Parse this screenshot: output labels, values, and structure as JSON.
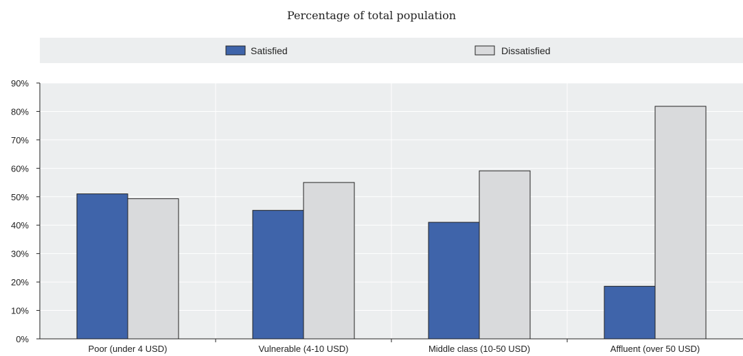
{
  "colors": {
    "satisfied": "#3f64aa",
    "dissatisfied": "#d9dadc",
    "legend_bg": "#eceeef",
    "grid": "#ffffff",
    "axis": "#222222"
  },
  "chart_data": {
    "type": "bar",
    "title": "",
    "subtitle": "Percentage of total population",
    "categories": [
      "Poor (under 4 USD)",
      "Vulnerable (4-10 USD)",
      "Middle class (10-50 USD)",
      "Affluent (over 50 USD)"
    ],
    "series": [
      {
        "name": "Satisfied",
        "values": [
          51,
          45.2,
          41,
          18.5
        ]
      },
      {
        "name": "Dissatisfied",
        "values": [
          49.3,
          55,
          59.1,
          81.8
        ]
      }
    ],
    "xlabel": "",
    "ylabel": "",
    "ylim": [
      0,
      90
    ],
    "yticks": [
      "0%",
      "10%",
      "20%",
      "30%",
      "40%",
      "50%",
      "60%",
      "70%",
      "80%",
      "90%"
    ],
    "legend_position": "top",
    "grid": true
  }
}
